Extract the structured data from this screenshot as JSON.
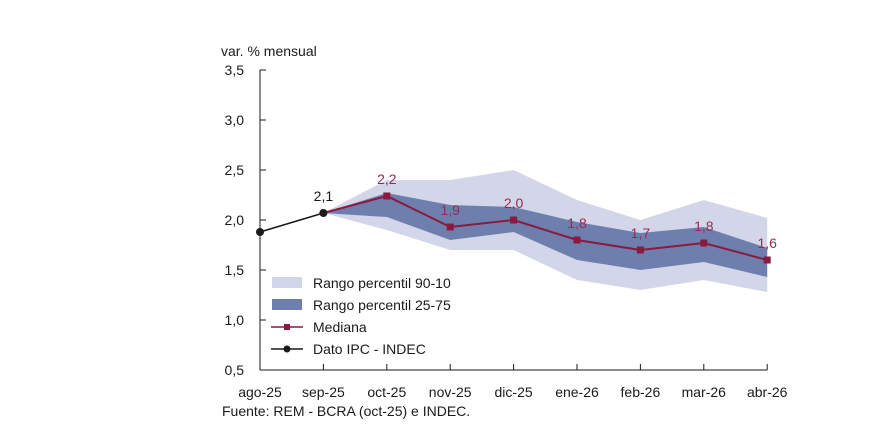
{
  "chart_data": {
    "type": "area",
    "title": "",
    "ylabel": "var. % mensual",
    "xlabel": "",
    "ylim": [
      0.5,
      3.5
    ],
    "yticks": [
      0.5,
      1.0,
      1.5,
      2.0,
      2.5,
      3.0,
      3.5
    ],
    "ytick_labels": [
      "0,5",
      "1,0",
      "1,5",
      "2,0",
      "2,5",
      "3,0",
      "3,5"
    ],
    "categories": [
      "ago-25",
      "sep-25",
      "oct-25",
      "nov-25",
      "dic-25",
      "ene-26",
      "feb-26",
      "mar-26",
      "abr-26"
    ],
    "grid": false,
    "legend_position": "bottom-left",
    "series": [
      {
        "name": "Rango percentil 90-10",
        "kind": "band",
        "color": "#d3d6e8",
        "start_index": 1,
        "upper": [
          2.07,
          2.4,
          2.4,
          2.5,
          2.2,
          2.0,
          2.2,
          2.02
        ],
        "lower": [
          2.07,
          1.9,
          1.7,
          1.7,
          1.4,
          1.3,
          1.4,
          1.28
        ]
      },
      {
        "name": "Rango percentil 25-75",
        "kind": "band",
        "color": "#6e7fae",
        "start_index": 1,
        "upper": [
          2.07,
          2.27,
          2.15,
          2.13,
          1.98,
          1.87,
          1.93,
          1.72
        ],
        "lower": [
          2.07,
          2.03,
          1.8,
          1.88,
          1.6,
          1.5,
          1.58,
          1.43
        ]
      },
      {
        "name": "Mediana",
        "kind": "line",
        "marker": "square",
        "color": "#8b1a3f",
        "start_index": 1,
        "values": [
          2.07,
          2.24,
          1.93,
          2.0,
          1.8,
          1.7,
          1.77,
          1.6
        ],
        "labels": [
          "",
          "2,2",
          "1,9",
          "2,0",
          "1,8",
          "1,7",
          "1,8",
          "1,6"
        ]
      },
      {
        "name": "Dato IPC - INDEC",
        "kind": "line",
        "marker": "circle",
        "color": "#1a1a1a",
        "start_index": 0,
        "values": [
          1.88,
          2.07
        ],
        "labels": [
          "",
          "2,1"
        ]
      }
    ],
    "label_color": "#9a2a52",
    "source": "Fuente: REM - BCRA (oct-25) e INDEC."
  }
}
